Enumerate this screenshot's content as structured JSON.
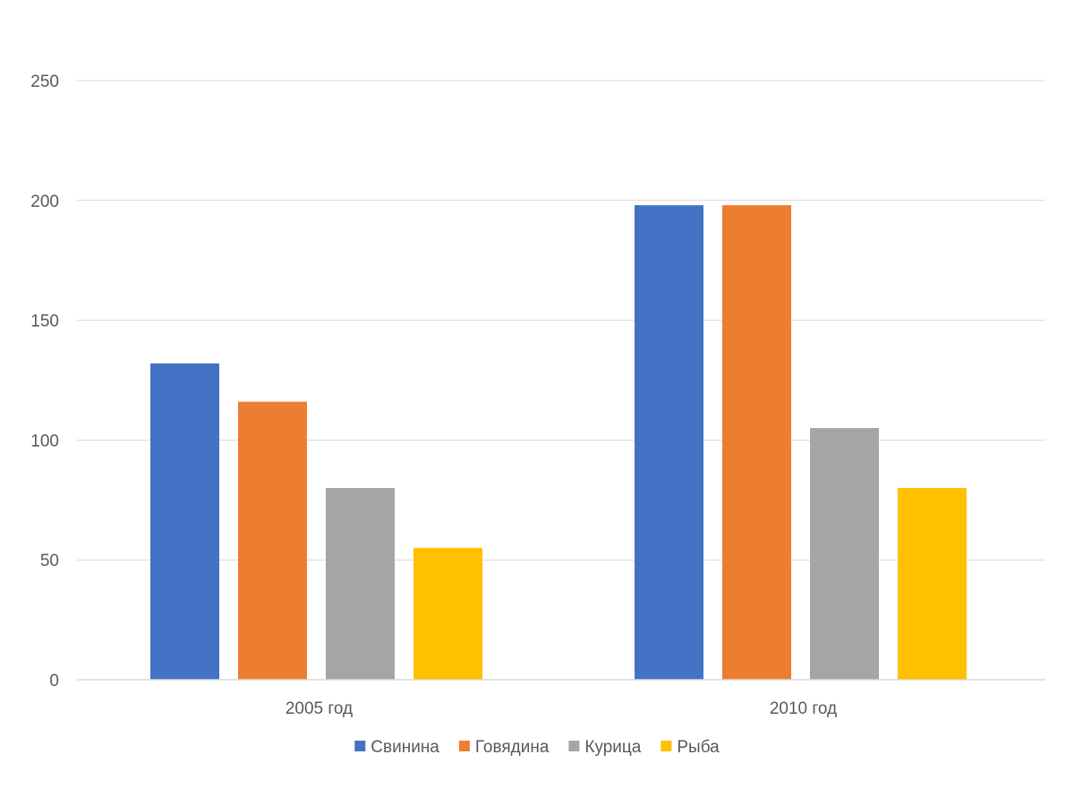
{
  "chart_data": {
    "type": "bar",
    "title": "",
    "xlabel": "",
    "ylabel": "",
    "categories": [
      "2005 год",
      "2010 год"
    ],
    "series": [
      {
        "name": "Свинина",
        "color": "#4472C4",
        "values": [
          132,
          198
        ]
      },
      {
        "name": "Говядина",
        "color": "#ED7D31",
        "values": [
          116,
          198
        ]
      },
      {
        "name": "Курица",
        "color": "#A5A5A5",
        "values": [
          80,
          105
        ]
      },
      {
        "name": "Рыба",
        "color": "#FFC000",
        "values": [
          55,
          80
        ]
      }
    ],
    "ylim": [
      0,
      250
    ],
    "yticks": [
      0,
      50,
      100,
      150,
      200,
      250
    ],
    "grid": true,
    "legend_position": "bottom"
  }
}
